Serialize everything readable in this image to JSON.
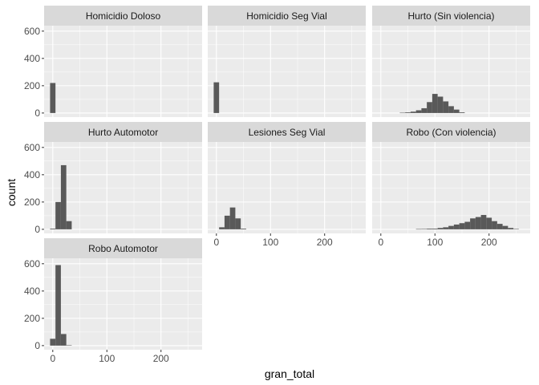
{
  "chart_data": {
    "type": "bar",
    "xlabel": "gran_total",
    "ylabel": "count",
    "xlim": [
      -16,
      276
    ],
    "ylim": [
      -30,
      640
    ],
    "x_ticks": [
      0,
      100,
      200
    ],
    "y_ticks": [
      0,
      200,
      400,
      600
    ],
    "bin_width": 10,
    "grid": true,
    "panels": [
      {
        "name": "Homicidio Doloso",
        "bins": [
          {
            "x": 0,
            "count": 220
          }
        ]
      },
      {
        "name": "Homicidio Seg Vial",
        "bins": [
          {
            "x": 0,
            "count": 225
          }
        ]
      },
      {
        "name": "Hurto (Sin violencia)",
        "bins": [
          {
            "x": 40,
            "count": 2
          },
          {
            "x": 50,
            "count": 5
          },
          {
            "x": 60,
            "count": 10
          },
          {
            "x": 70,
            "count": 20
          },
          {
            "x": 80,
            "count": 35
          },
          {
            "x": 90,
            "count": 80
          },
          {
            "x": 100,
            "count": 140
          },
          {
            "x": 110,
            "count": 120
          },
          {
            "x": 120,
            "count": 85
          },
          {
            "x": 130,
            "count": 50
          },
          {
            "x": 140,
            "count": 25
          },
          {
            "x": 150,
            "count": 5
          }
        ]
      },
      {
        "name": "Hurto Automotor",
        "bins": [
          {
            "x": 0,
            "count": 5
          },
          {
            "x": 10,
            "count": 200
          },
          {
            "x": 20,
            "count": 470
          },
          {
            "x": 30,
            "count": 60
          }
        ]
      },
      {
        "name": "Lesiones Seg Vial",
        "bins": [
          {
            "x": 10,
            "count": 15
          },
          {
            "x": 20,
            "count": 100
          },
          {
            "x": 30,
            "count": 160
          },
          {
            "x": 40,
            "count": 80
          },
          {
            "x": 50,
            "count": 5
          }
        ]
      },
      {
        "name": "Robo (Con violencia)",
        "bins": [
          {
            "x": 70,
            "count": 2
          },
          {
            "x": 80,
            "count": 3
          },
          {
            "x": 90,
            "count": 5
          },
          {
            "x": 100,
            "count": 5
          },
          {
            "x": 110,
            "count": 10
          },
          {
            "x": 120,
            "count": 15
          },
          {
            "x": 130,
            "count": 25
          },
          {
            "x": 140,
            "count": 35
          },
          {
            "x": 150,
            "count": 45
          },
          {
            "x": 160,
            "count": 55
          },
          {
            "x": 170,
            "count": 80
          },
          {
            "x": 180,
            "count": 90
          },
          {
            "x": 190,
            "count": 105
          },
          {
            "x": 200,
            "count": 85
          },
          {
            "x": 210,
            "count": 60
          },
          {
            "x": 220,
            "count": 40
          },
          {
            "x": 230,
            "count": 25
          },
          {
            "x": 240,
            "count": 10
          },
          {
            "x": 250,
            "count": 3
          }
        ]
      },
      {
        "name": "Robo Automotor",
        "bins": [
          {
            "x": 0,
            "count": 50
          },
          {
            "x": 10,
            "count": 590
          },
          {
            "x": 20,
            "count": 85
          },
          {
            "x": 30,
            "count": 3
          }
        ]
      }
    ],
    "colors": {
      "bar": "#595959",
      "panel_bg": "#ebebeb",
      "grid": "#ffffff",
      "strip_bg": "#d9d9d9"
    }
  }
}
